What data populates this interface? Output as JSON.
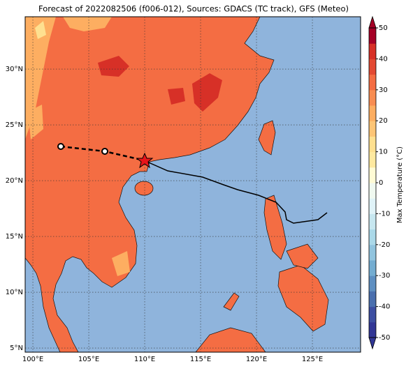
{
  "title": "Forecast of 2022082506 (f006-012), Sources: GDACS (TC track), GFS (Meteo)",
  "map": {
    "xlim": [
      99.31,
      129.31
    ],
    "ylim": [
      4.63,
      34.69
    ],
    "xticks": [
      {
        "value": 100,
        "label": "100°E"
      },
      {
        "value": 105,
        "label": "105°E"
      },
      {
        "value": 110,
        "label": "110°E"
      },
      {
        "value": 115,
        "label": "115°E"
      },
      {
        "value": 120,
        "label": "120°E"
      },
      {
        "value": 125,
        "label": "125°E"
      }
    ],
    "yticks": [
      {
        "value": 5,
        "label": "5°N"
      },
      {
        "value": 10,
        "label": "10°N"
      },
      {
        "value": 15,
        "label": "15°N"
      },
      {
        "value": 20,
        "label": "20°N"
      },
      {
        "value": 25,
        "label": "25°N"
      },
      {
        "value": 30,
        "label": "30°N"
      }
    ],
    "grid": true
  },
  "colorbar": {
    "label": "Max Temperature (°C)",
    "lim": [
      -50,
      50
    ],
    "ticks": [
      -50,
      -40,
      -30,
      -20,
      -10,
      0,
      10,
      20,
      30,
      40,
      50
    ],
    "colors": [
      "#313695",
      "#3c4ea1",
      "#4a6fae",
      "#5e8fc1",
      "#74add1",
      "#91c4de",
      "#abd9e9",
      "#c7e7f0",
      "#e0f3f8",
      "#f0f9f0",
      "#fffbd5",
      "#fee9a0",
      "#fee090",
      "#fdc576",
      "#fdae61",
      "#f88d52",
      "#f46d43",
      "#e34933",
      "#d73027",
      "#a50026"
    ]
  }
}
